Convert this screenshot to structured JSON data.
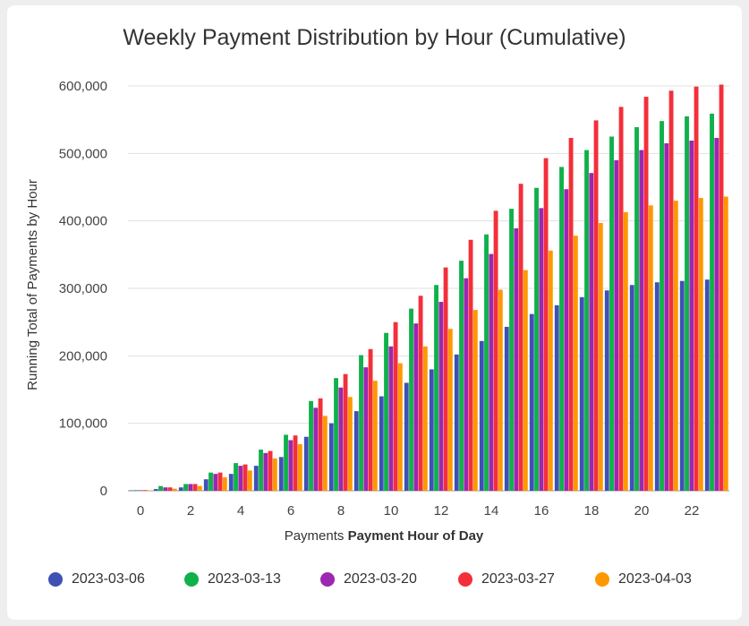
{
  "chart_data": {
    "type": "bar",
    "title": "Weekly Payment Distribution by Hour (Cumulative)",
    "ylabel": "Running Total of Payments by Hour",
    "xlabel_prefix": "Payments",
    "xlabel_bold": "Payment Hour of Day",
    "ylim": [
      0,
      600000
    ],
    "yticks": [
      0,
      100000,
      200000,
      300000,
      400000,
      500000,
      600000
    ],
    "ytick_labels": [
      "0",
      "100,000",
      "200,000",
      "300,000",
      "400,000",
      "500,000",
      "600,000"
    ],
    "xticks": [
      "0",
      "2",
      "4",
      "6",
      "8",
      "10",
      "12",
      "14",
      "16",
      "18",
      "20",
      "22"
    ],
    "categories": [
      0,
      1,
      2,
      3,
      4,
      5,
      6,
      7,
      8,
      9,
      10,
      11,
      12,
      13,
      14,
      15,
      16,
      17,
      18,
      19,
      20,
      21,
      22,
      23
    ],
    "legend_position": "bottom",
    "series": [
      {
        "name": "2023-03-06",
        "color": "#3f51b5",
        "values": [
          500,
          2500,
          5000,
          17000,
          25000,
          37000,
          50000,
          80000,
          100000,
          118000,
          140000,
          160000,
          180000,
          202000,
          222000,
          243000,
          262000,
          275000,
          287000,
          297000,
          305000,
          309000,
          311000,
          313000
        ]
      },
      {
        "name": "2023-03-13",
        "color": "#0fb14a",
        "values": [
          1000,
          7000,
          10000,
          27000,
          41000,
          61000,
          83000,
          133000,
          167000,
          201000,
          234000,
          270000,
          305000,
          341000,
          380000,
          418000,
          449000,
          480000,
          505000,
          525000,
          539000,
          548000,
          555000,
          559000
        ]
      },
      {
        "name": "2023-03-20",
        "color": "#9c27b0",
        "values": [
          800,
          5000,
          10000,
          25000,
          37000,
          56000,
          75000,
          123000,
          153000,
          183000,
          214000,
          248000,
          280000,
          315000,
          351000,
          389000,
          419000,
          447000,
          471000,
          490000,
          505000,
          515000,
          519000,
          523000
        ]
      },
      {
        "name": "2023-03-27",
        "color": "#f32f3a",
        "values": [
          1000,
          5000,
          10000,
          27000,
          39000,
          59000,
          82000,
          137000,
          173000,
          210000,
          250000,
          289000,
          331000,
          372000,
          415000,
          455000,
          493000,
          523000,
          549000,
          569000,
          584000,
          593000,
          599000,
          602000
        ]
      },
      {
        "name": "2023-04-03",
        "color": "#ff9800",
        "values": [
          500,
          3000,
          7000,
          20000,
          30000,
          48000,
          69000,
          111000,
          139000,
          163000,
          189000,
          214000,
          240000,
          268000,
          298000,
          327000,
          356000,
          378000,
          397000,
          413000,
          423000,
          430000,
          434000,
          436000
        ]
      }
    ]
  }
}
